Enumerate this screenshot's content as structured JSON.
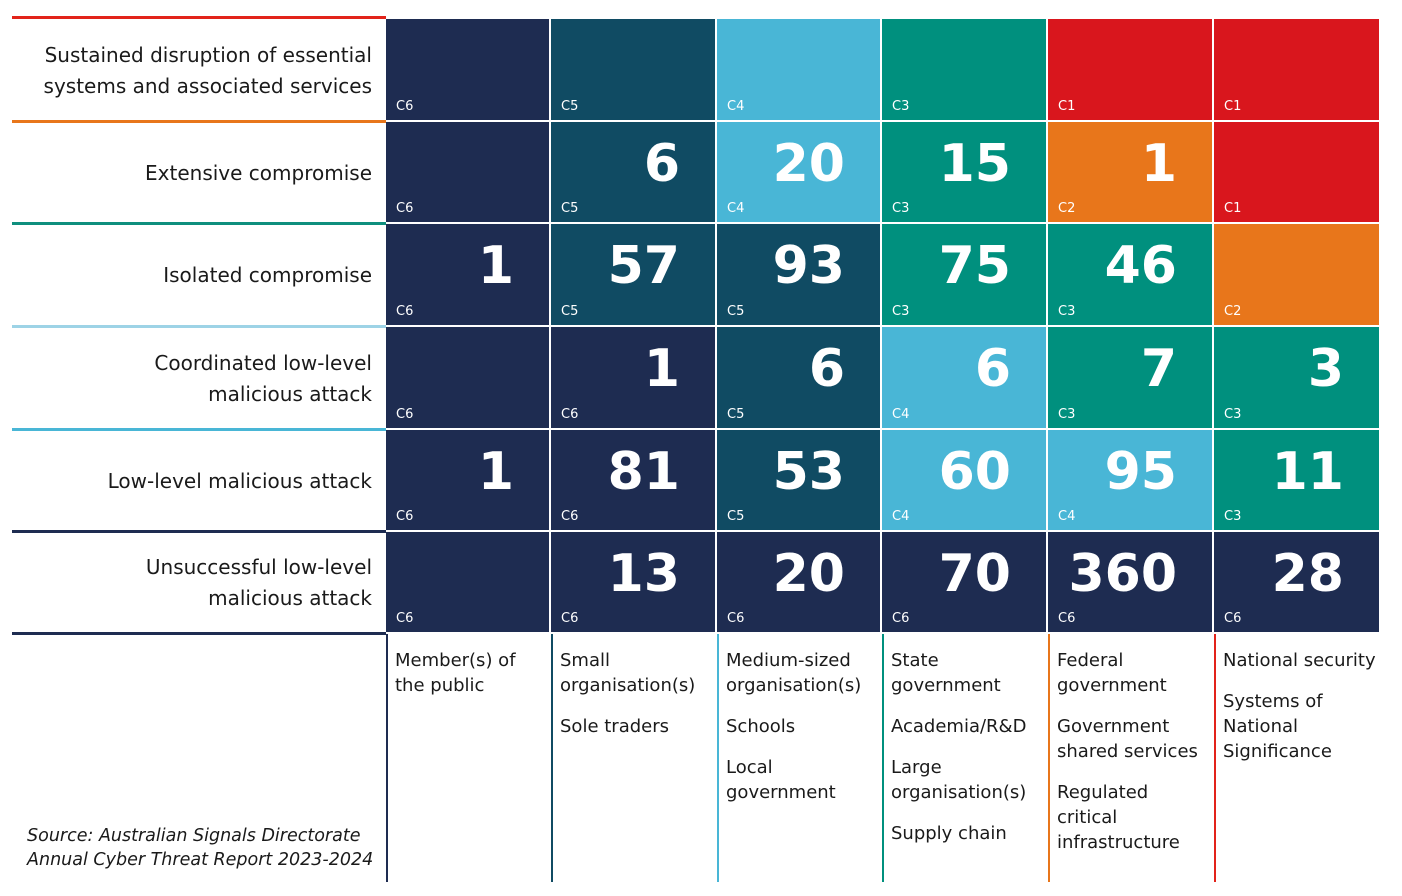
{
  "chart_data": {
    "type": "heatmap",
    "title": "",
    "rows": [
      "Sustained disruption of essential\nsystems and associated services",
      "Extensive compromise",
      "Isolated compromise",
      "Coordinated low-level\nmalicious attack",
      "Low-level malicious attack",
      "Unsuccessful low-level\nmalicious attack"
    ],
    "row_colors": [
      "#e2231a",
      "#e8761b",
      "#0f8f7e",
      "#9dd3e6",
      "#49b6d6",
      "#1e2c51"
    ],
    "columns": [
      {
        "lines": [
          "Member(s) of\nthe public"
        ],
        "color": "#1e2c51"
      },
      {
        "lines": [
          "Small\norganisation(s)",
          "Sole traders"
        ],
        "color": "#104b63"
      },
      {
        "lines": [
          "Medium-sized\norganisation(s)",
          "Schools",
          "Local\ngovernment"
        ],
        "color": "#49b6d6"
      },
      {
        "lines": [
          "State\ngovernment",
          "Academia/R&D",
          "Large\norganisation(s)",
          "Supply chain"
        ],
        "color": "#00907e"
      },
      {
        "lines": [
          "Federal\ngovernment",
          "Government\nshared services",
          "Regulated\ncritical\ninfrastructure"
        ],
        "color": "#e8761b"
      },
      {
        "lines": [
          "National security",
          "Systems of\nNational\nSignificance"
        ],
        "color": "#e2231a"
      }
    ],
    "category_colors": {
      "C1": "#d9161d",
      "C2": "#e8761b",
      "C3": "#00907e",
      "C4": "#49b6d6",
      "C5": "#104b63",
      "C6": "#1e2c51"
    },
    "cells": [
      [
        {
          "value": "",
          "cat": "C6"
        },
        {
          "value": "",
          "cat": "C5"
        },
        {
          "value": "",
          "cat": "C4"
        },
        {
          "value": "",
          "cat": "C3"
        },
        {
          "value": "",
          "cat": "C1"
        },
        {
          "value": "",
          "cat": "C1"
        }
      ],
      [
        {
          "value": "",
          "cat": "C6"
        },
        {
          "value": "6",
          "cat": "C5"
        },
        {
          "value": "20",
          "cat": "C4"
        },
        {
          "value": "15",
          "cat": "C3"
        },
        {
          "value": "1",
          "cat": "C2"
        },
        {
          "value": "",
          "cat": "C1"
        }
      ],
      [
        {
          "value": "1",
          "cat": "C6"
        },
        {
          "value": "57",
          "cat": "C5"
        },
        {
          "value": "93",
          "cat": "C5"
        },
        {
          "value": "75",
          "cat": "C3"
        },
        {
          "value": "46",
          "cat": "C3"
        },
        {
          "value": "",
          "cat": "C2"
        }
      ],
      [
        {
          "value": "",
          "cat": "C6"
        },
        {
          "value": "1",
          "cat": "C6"
        },
        {
          "value": "6",
          "cat": "C5"
        },
        {
          "value": "6",
          "cat": "C4"
        },
        {
          "value": "7",
          "cat": "C3"
        },
        {
          "value": "3",
          "cat": "C3"
        }
      ],
      [
        {
          "value": "1",
          "cat": "C6"
        },
        {
          "value": "81",
          "cat": "C6"
        },
        {
          "value": "53",
          "cat": "C5"
        },
        {
          "value": "60",
          "cat": "C4"
        },
        {
          "value": "95",
          "cat": "C4"
        },
        {
          "value": "11",
          "cat": "C3"
        }
      ],
      [
        {
          "value": "",
          "cat": "C6"
        },
        {
          "value": "13",
          "cat": "C6"
        },
        {
          "value": "20",
          "cat": "C6"
        },
        {
          "value": "70",
          "cat": "C6"
        },
        {
          "value": "360",
          "cat": "C6"
        },
        {
          "value": "28",
          "cat": "C6"
        }
      ]
    ],
    "source": "Source: Australian Signals Directorate\nAnnual Cyber Threat Report 2023-2024"
  }
}
